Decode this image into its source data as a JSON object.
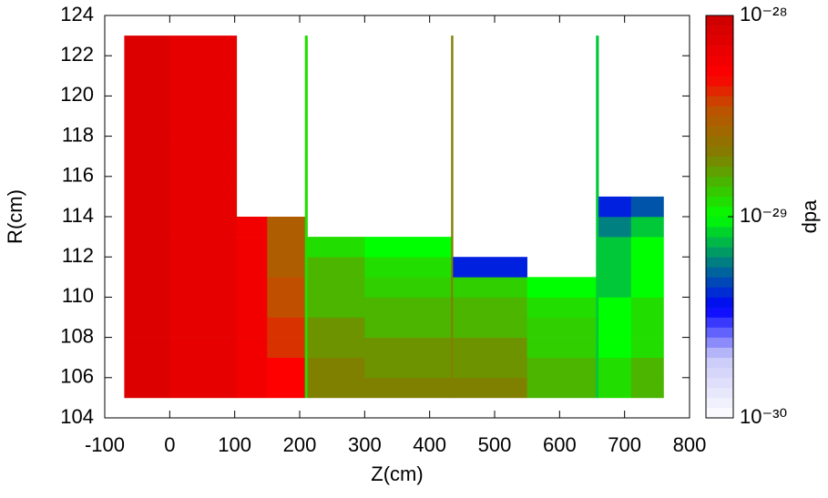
{
  "chart_data": {
    "type": "heatmap",
    "x_label": "Z(cm)",
    "y_label": "R(cm)",
    "colorbar_label": "dpa",
    "x_edges": [
      -70,
      0,
      103,
      150,
      208,
      212,
      300,
      433,
      436,
      550,
      656,
      660,
      710,
      760
    ],
    "y_edges": [
      105,
      106,
      107,
      108,
      109,
      110,
      111,
      112,
      113,
      114,
      115,
      116,
      117,
      118,
      119,
      120,
      121,
      122,
      123
    ],
    "values": [
      [
        8e-29,
        7e-29,
        6e-29,
        5e-29,
        1.2e-29,
        2e-29,
        2e-29,
        2e-29,
        2e-29,
        1.5e-29,
        8e-30,
        1.2e-29,
        1.5e-29
      ],
      [
        8e-29,
        7e-29,
        6e-29,
        5e-29,
        1.2e-29,
        2e-29,
        1.8e-29,
        2e-29,
        1.8e-29,
        1.5e-29,
        8e-30,
        1.2e-29,
        1.5e-29
      ],
      [
        8e-29,
        7e-29,
        6e-29,
        4e-29,
        1.2e-29,
        1.8e-29,
        1.8e-29,
        2e-29,
        1.8e-29,
        1.3e-29,
        8e-30,
        1e-29,
        1.2e-29
      ],
      [
        8e-29,
        7e-29,
        6e-29,
        4e-29,
        1.2e-29,
        1.8e-29,
        1.5e-29,
        2e-29,
        1.5e-29,
        1.3e-29,
        8e-30,
        1e-29,
        1.2e-29
      ],
      [
        8e-29,
        7e-29,
        6e-29,
        3.5e-29,
        1.2e-29,
        1.5e-29,
        1.5e-29,
        2e-29,
        1.5e-29,
        1.2e-29,
        8e-30,
        1e-29,
        1.2e-29
      ],
      [
        8e-29,
        7e-29,
        6e-29,
        3.5e-29,
        1.2e-29,
        1.5e-29,
        1.3e-29,
        2e-29,
        1.3e-29,
        1e-29,
        8e-30,
        8e-30,
        1e-29
      ],
      [
        8e-29,
        7e-29,
        6e-29,
        3e-29,
        1.2e-29,
        1.5e-29,
        1.2e-29,
        2e-29,
        4e-30,
        null,
        8e-30,
        8e-30,
        1e-29
      ],
      [
        8e-29,
        7e-29,
        6e-29,
        3e-29,
        1.2e-29,
        1.2e-29,
        1e-29,
        2e-29,
        null,
        null,
        8e-30,
        8e-30,
        1e-29
      ],
      [
        8e-29,
        7e-29,
        6e-29,
        3e-29,
        1.2e-29,
        null,
        null,
        2e-29,
        null,
        null,
        8e-30,
        6e-30,
        8e-30
      ],
      [
        8e-29,
        7e-29,
        null,
        null,
        1.2e-29,
        null,
        null,
        2e-29,
        null,
        null,
        8e-30,
        4e-30,
        5e-30
      ],
      [
        8e-29,
        7e-29,
        null,
        null,
        1.2e-29,
        null,
        null,
        2e-29,
        null,
        null,
        8e-30,
        null,
        null
      ],
      [
        8e-29,
        7e-29,
        null,
        null,
        1.2e-29,
        null,
        null,
        2e-29,
        null,
        null,
        8e-30,
        null,
        null
      ],
      [
        8e-29,
        7e-29,
        null,
        null,
        1.2e-29,
        null,
        null,
        2e-29,
        null,
        null,
        8e-30,
        null,
        null
      ],
      [
        8e-29,
        7e-29,
        null,
        null,
        1.2e-29,
        null,
        null,
        2e-29,
        null,
        null,
        8e-30,
        null,
        null
      ],
      [
        8e-29,
        7e-29,
        null,
        null,
        1.2e-29,
        null,
        null,
        2e-29,
        null,
        null,
        8e-30,
        null,
        null
      ],
      [
        8e-29,
        7e-29,
        null,
        null,
        1.2e-29,
        null,
        null,
        2e-29,
        null,
        null,
        8e-30,
        null,
        null
      ],
      [
        8e-29,
        7e-29,
        null,
        null,
        1.2e-29,
        null,
        null,
        2e-29,
        null,
        null,
        8e-30,
        null,
        null
      ],
      [
        8e-29,
        7e-29,
        null,
        null,
        1.2e-29,
        null,
        null,
        2e-29,
        null,
        null,
        8e-30,
        null,
        null
      ]
    ],
    "xlim": [
      -100,
      800
    ],
    "xticks": [
      -100,
      0,
      100,
      200,
      300,
      400,
      500,
      600,
      700,
      800
    ],
    "ylim": [
      104,
      124
    ],
    "yticks": [
      104,
      106,
      108,
      110,
      112,
      114,
      116,
      118,
      120,
      122,
      124
    ],
    "colorbar_log": true,
    "clim": [
      1e-30,
      1e-28
    ],
    "cticks": [
      {
        "value": 1e-30,
        "label": "10⁻³⁰"
      },
      {
        "value": 1e-29,
        "label": "10⁻²⁹"
      },
      {
        "value": 1e-28,
        "label": "10⁻²⁸"
      }
    ],
    "colorscale": [
      {
        "value": 1e-30,
        "color": "#ffffff"
      },
      {
        "value": 2e-30,
        "color": "#c8c8f8"
      },
      {
        "value": 3.5e-30,
        "color": "#0000ff"
      },
      {
        "value": 6e-30,
        "color": "#008080"
      },
      {
        "value": 1e-29,
        "color": "#00ff00"
      },
      {
        "value": 2e-29,
        "color": "#808000"
      },
      {
        "value": 3.5e-29,
        "color": "#c05000"
      },
      {
        "value": 5e-29,
        "color": "#ff0000"
      },
      {
        "value": 1e-28,
        "color": "#cc0000"
      }
    ],
    "grid": false
  }
}
